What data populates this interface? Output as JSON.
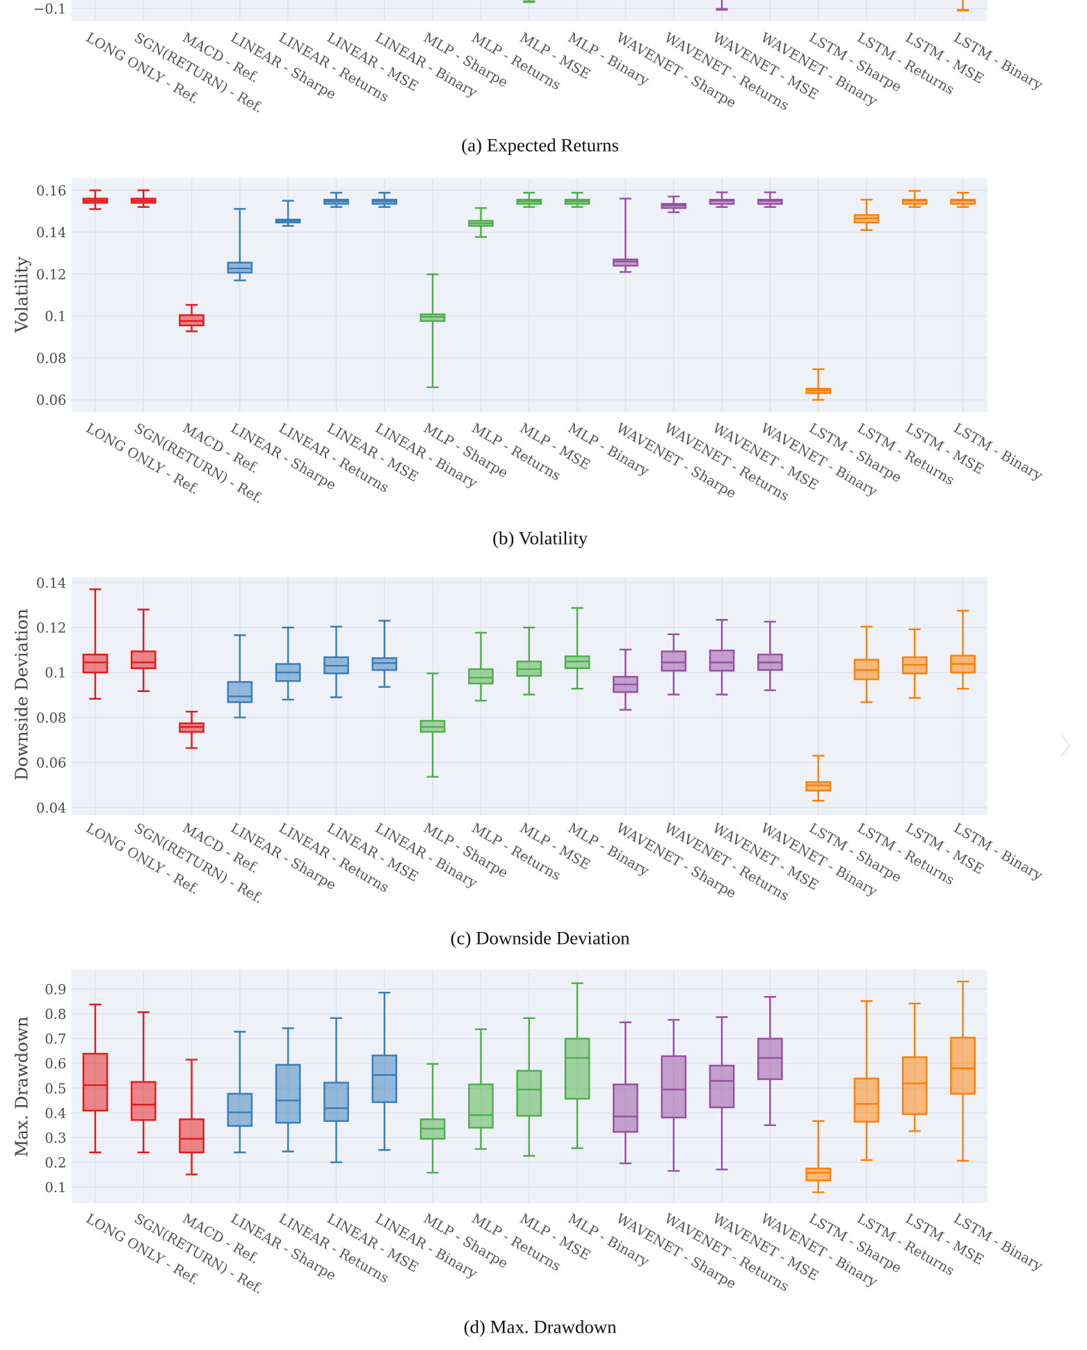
{
  "categories": [
    "LONG ONLY - Ref.",
    "SGN(RETURN) - Ref.",
    "MACD - Ref.",
    "LINEAR - Sharpe",
    "LINEAR - Returns",
    "LINEAR - MSE",
    "LINEAR - Binary",
    "MLP - Sharpe",
    "MLP - Returns",
    "MLP - MSE",
    "MLP - Binary",
    "WAVENET - Sharpe",
    "WAVENET - Returns",
    "WAVENET - MSE",
    "WAVENET - Binary",
    "LSTM - Sharpe",
    "LSTM - Returns",
    "LSTM - MSE",
    "LSTM - Binary"
  ],
  "group_colors": [
    "#e41a1c",
    "#e41a1c",
    "#e41a1c",
    "#377eb8",
    "#377eb8",
    "#377eb8",
    "#377eb8",
    "#4daf4a",
    "#4daf4a",
    "#4daf4a",
    "#4daf4a",
    "#984ea3",
    "#984ea3",
    "#984ea3",
    "#984ea3",
    "#ff7f00",
    "#ff7f00",
    "#ff7f00",
    "#ff7f00"
  ],
  "plot_background": "#eef1f7",
  "grid_color": "#dde2ec",
  "chart_data": [
    {
      "type": "box",
      "caption": "(a) Expected Returns",
      "ylabel": "",
      "ylim": [
        -0.1075,
        -0.085
      ],
      "yticks": [
        -0.1
      ],
      "ytick_labels": [
        "−0.1"
      ],
      "grid": true,
      "note_partial": "only lower whisker ends visible",
      "whisker_lows": [
        {
          "category": "MLP - MSE",
          "min": -0.096
        },
        {
          "category": "WAVENET - MSE",
          "min": -0.1005
        },
        {
          "category": "LSTM - Binary",
          "min": -0.101
        }
      ]
    },
    {
      "type": "box",
      "caption": "(b) Volatility",
      "ylabel": "Volatility",
      "ylim": [
        0.0543,
        0.1657
      ],
      "yticks": [
        0.06,
        0.08,
        0.1,
        0.12,
        0.14,
        0.16
      ],
      "ytick_labels": [
        "0.06",
        "0.08",
        "0.1",
        "0.12",
        "0.14",
        "0.16"
      ],
      "grid": true,
      "boxes": [
        [
          0.151,
          0.154,
          0.155,
          0.156,
          0.16
        ],
        [
          0.152,
          0.154,
          0.155,
          0.156,
          0.16
        ],
        [
          0.0927,
          0.0955,
          0.0976,
          0.1004,
          0.1053
        ],
        [
          0.117,
          0.1207,
          0.1227,
          0.1255,
          0.1511
        ],
        [
          0.143,
          0.1446,
          0.1454,
          0.146,
          0.155
        ],
        [
          0.152,
          0.1535,
          0.1547,
          0.1555,
          0.1588
        ],
        [
          0.152,
          0.1535,
          0.1547,
          0.1555,
          0.1588
        ],
        [
          0.066,
          0.0976,
          0.0996,
          0.1008,
          0.1199
        ],
        [
          0.1377,
          0.143,
          0.1442,
          0.1454,
          0.1515
        ],
        [
          0.152,
          0.1535,
          0.1547,
          0.1555,
          0.1588
        ],
        [
          0.152,
          0.1535,
          0.1547,
          0.1555,
          0.1588
        ],
        [
          0.121,
          0.124,
          0.126,
          0.127,
          0.156
        ],
        [
          0.1495,
          0.1515,
          0.1527,
          0.1535,
          0.157
        ],
        [
          0.152,
          0.1535,
          0.155,
          0.1555,
          0.159
        ],
        [
          0.152,
          0.1535,
          0.155,
          0.1555,
          0.159
        ],
        [
          0.06,
          0.0632,
          0.0645,
          0.0653,
          0.0746
        ],
        [
          0.141,
          0.1446,
          0.1466,
          0.1482,
          0.1555
        ],
        [
          0.152,
          0.1535,
          0.155,
          0.1555,
          0.1597
        ],
        [
          0.152,
          0.1535,
          0.155,
          0.1555,
          0.1588
        ]
      ]
    },
    {
      "type": "box",
      "caption": "(c) Downside Deviation",
      "ylabel": "Downside Deviation",
      "ylim": [
        0.0366,
        0.1423
      ],
      "yticks": [
        0.04,
        0.06,
        0.08,
        0.1,
        0.12,
        0.14
      ],
      "ytick_labels": [
        "0.04",
        "0.06",
        "0.08",
        "0.1",
        "0.12",
        "0.14"
      ],
      "grid": true,
      "boxes": [
        [
          0.0883,
          0.1,
          0.1045,
          0.108,
          0.137
        ],
        [
          0.0917,
          0.1019,
          0.1045,
          0.1094,
          0.128
        ],
        [
          0.0664,
          0.0736,
          0.0758,
          0.0774,
          0.0826
        ],
        [
          0.08,
          0.0868,
          0.0894,
          0.0958,
          0.1166
        ],
        [
          0.0879,
          0.0962,
          0.1,
          0.1038,
          0.12
        ],
        [
          0.089,
          0.0996,
          0.103,
          0.1068,
          0.1204
        ],
        [
          0.0936,
          0.1011,
          0.1042,
          0.1064,
          0.123
        ],
        [
          0.0536,
          0.0736,
          0.0758,
          0.0785,
          0.0996
        ],
        [
          0.0875,
          0.0951,
          0.0977,
          0.1015,
          0.1177
        ],
        [
          0.0902,
          0.0985,
          0.1015,
          0.1049,
          0.12
        ],
        [
          0.0928,
          0.1019,
          0.1049,
          0.1072,
          0.1287
        ],
        [
          0.0834,
          0.0913,
          0.0947,
          0.0981,
          0.1102
        ],
        [
          0.0902,
          0.1008,
          0.1045,
          0.1094,
          0.117
        ],
        [
          0.0902,
          0.1008,
          0.1045,
          0.1098,
          0.1234
        ],
        [
          0.0921,
          0.1011,
          0.1045,
          0.108,
          0.1226
        ],
        [
          0.043,
          0.0475,
          0.0498,
          0.0513,
          0.063
        ],
        [
          0.0868,
          0.097,
          0.1011,
          0.1057,
          0.1204
        ],
        [
          0.0887,
          0.0996,
          0.1034,
          0.1068,
          0.1192
        ],
        [
          0.0928,
          0.1,
          0.1038,
          0.1075,
          0.1275
        ]
      ]
    },
    {
      "type": "box",
      "caption": "(d) Max. Drawdown",
      "ylabel": "Max. Drawdown",
      "ylim": [
        0.035,
        0.979
      ],
      "yticks": [
        0.1,
        0.2,
        0.3,
        0.4,
        0.5,
        0.6,
        0.7,
        0.8,
        0.9
      ],
      "ytick_labels": [
        "0.1",
        "0.2",
        "0.3",
        "0.4",
        "0.5",
        "0.6",
        "0.7",
        "0.8",
        "0.9"
      ],
      "grid": true,
      "boxes": [
        [
          0.24,
          0.409,
          0.512,
          0.639,
          0.838
        ],
        [
          0.24,
          0.371,
          0.433,
          0.525,
          0.807
        ],
        [
          0.151,
          0.24,
          0.295,
          0.374,
          0.615
        ],
        [
          0.24,
          0.347,
          0.402,
          0.477,
          0.728
        ],
        [
          0.244,
          0.36,
          0.45,
          0.594,
          0.742
        ],
        [
          0.2,
          0.367,
          0.419,
          0.522,
          0.783
        ],
        [
          0.25,
          0.443,
          0.553,
          0.632,
          0.886
        ],
        [
          0.158,
          0.295,
          0.336,
          0.374,
          0.598
        ],
        [
          0.254,
          0.34,
          0.391,
          0.515,
          0.738
        ],
        [
          0.226,
          0.388,
          0.494,
          0.57,
          0.783
        ],
        [
          0.257,
          0.457,
          0.622,
          0.7,
          0.924
        ],
        [
          0.196,
          0.323,
          0.385,
          0.515,
          0.766
        ],
        [
          0.165,
          0.381,
          0.494,
          0.629,
          0.776
        ],
        [
          0.171,
          0.422,
          0.529,
          0.591,
          0.787
        ],
        [
          0.35,
          0.536,
          0.622,
          0.7,
          0.869
        ],
        [
          0.079,
          0.127,
          0.158,
          0.175,
          0.367
        ],
        [
          0.209,
          0.364,
          0.436,
          0.539,
          0.852
        ],
        [
          0.326,
          0.395,
          0.519,
          0.625,
          0.842
        ],
        [
          0.206,
          0.477,
          0.58,
          0.704,
          0.931
        ]
      ]
    }
  ]
}
